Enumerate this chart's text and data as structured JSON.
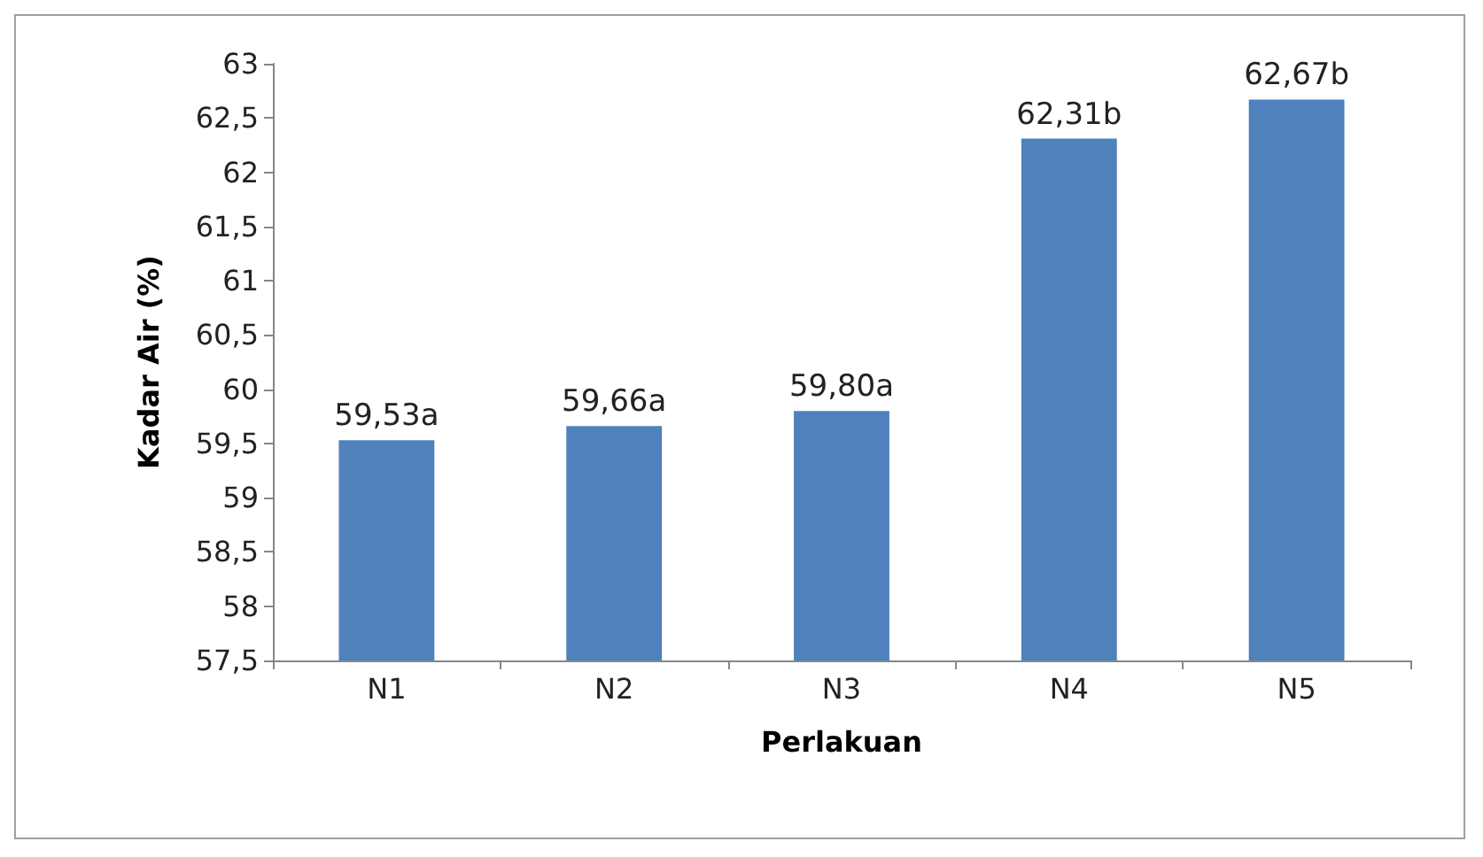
{
  "chart_data": {
    "type": "bar",
    "xlabel": "Perlakuan",
    "ylabel": "Kadar Air (%)",
    "categories": [
      "N1",
      "N2",
      "N3",
      "N4",
      "N5"
    ],
    "values": [
      59.53,
      59.66,
      59.8,
      62.31,
      62.67
    ],
    "value_labels": [
      "59,53a",
      "59,66a",
      "59,80a",
      "62,31b",
      "62,67b"
    ],
    "color": "#4f81bd",
    "ylim": [
      57.5,
      63
    ],
    "yticks": [
      {
        "value": 57.5,
        "label": "57,5"
      },
      58,
      {
        "value": 58.5,
        "label": "58,5"
      },
      59,
      {
        "value": 59.5,
        "label": "59,5"
      },
      60,
      {
        "value": 60.5,
        "label": "60,5"
      },
      61,
      {
        "value": 61.5,
        "label": "61,5"
      },
      62,
      {
        "value": 62.5,
        "label": "62,5"
      },
      63
    ],
    "grid": false
  }
}
